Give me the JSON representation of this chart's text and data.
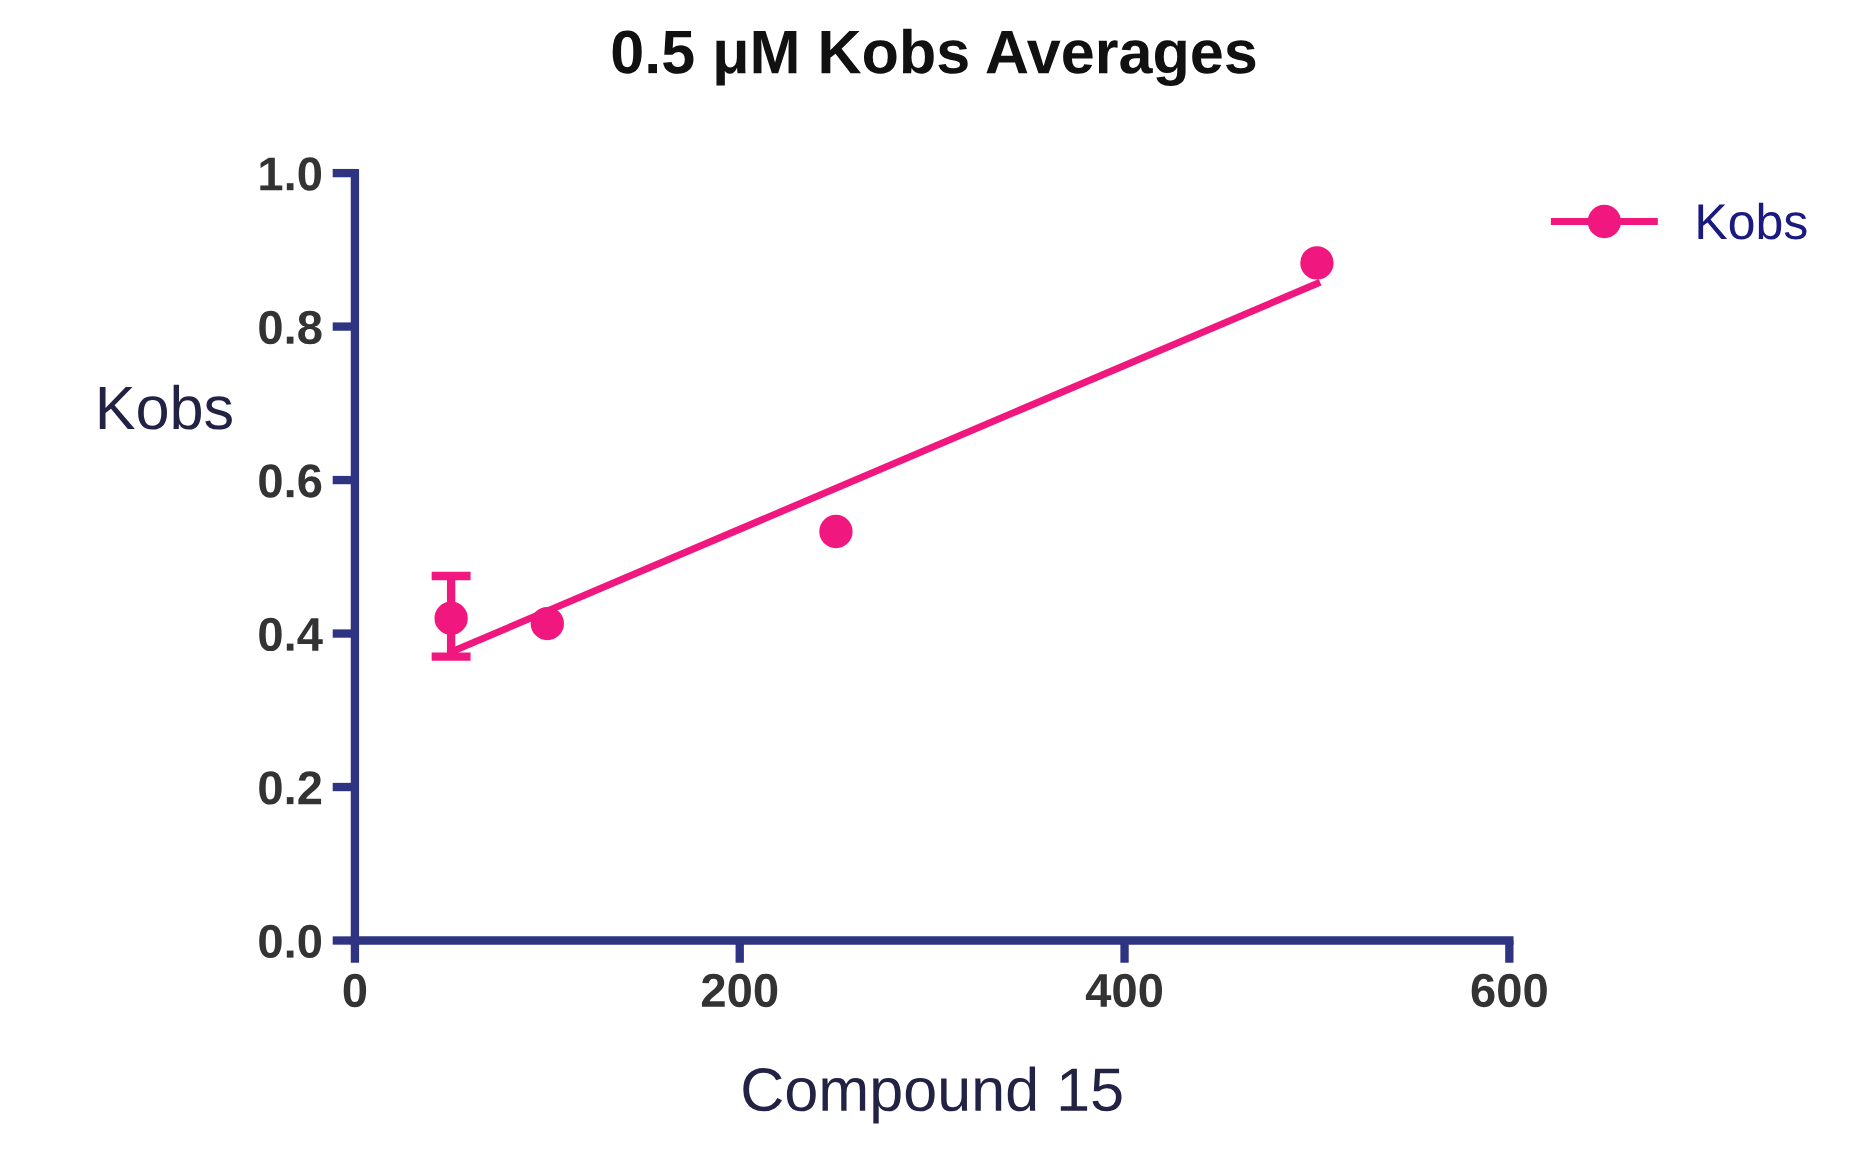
{
  "chart_data": {
    "type": "scatter",
    "title": "0.5 μM Kobs Averages",
    "xlabel": "Compound 15",
    "ylabel": "Kobs",
    "xlim": [
      0,
      600
    ],
    "xticks": [
      0,
      200,
      400,
      600
    ],
    "ylim": [
      0,
      1.0
    ],
    "yticks": [
      {
        "value": 0,
        "label": "0.0"
      },
      0.2,
      0.4,
      0.6,
      0.8,
      {
        "value": 1.0,
        "label": "1.0"
      }
    ],
    "series": [
      {
        "name": "Kobs",
        "marker": "circle",
        "color": "#f0177f",
        "x": [
          50,
          100,
          250,
          500
        ],
        "values": [
          0.42,
          0.413,
          0.533,
          0.883
        ],
        "errors": [
          [
            0.37,
            0.475
          ],
          null,
          null,
          null
        ]
      },
      {
        "type": "line",
        "marker": "none",
        "color": "#f0177f",
        "x": [
          50,
          500
        ],
        "values": [
          0.376,
          0.856
        ]
      }
    ],
    "grid": false,
    "legend": "top right"
  }
}
